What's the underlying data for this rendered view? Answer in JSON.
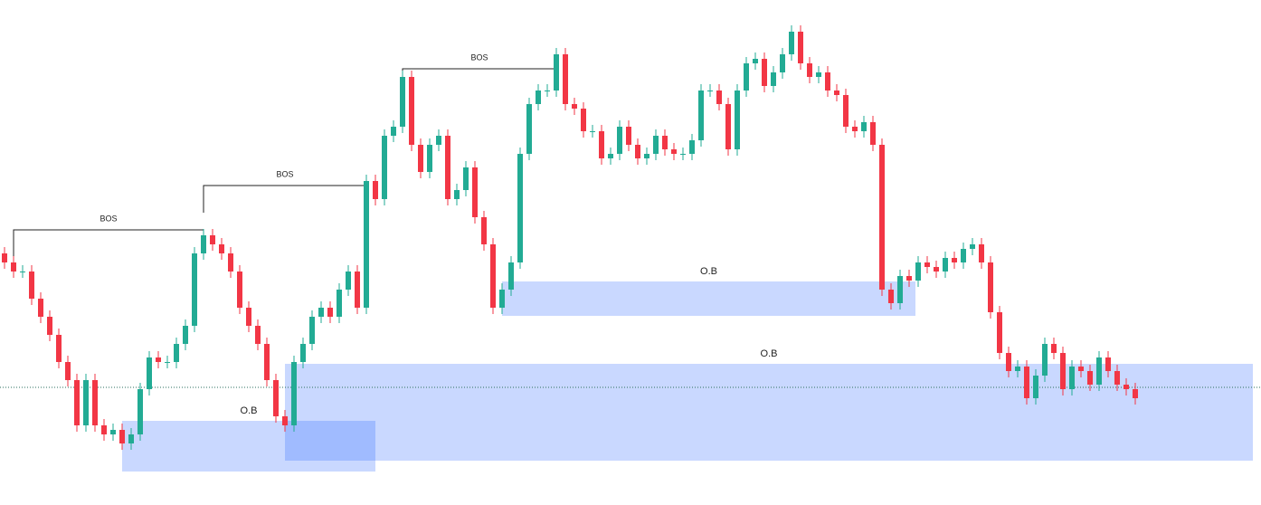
{
  "chart_data": {
    "type": "candlestick",
    "up_color": "#22ab94",
    "down_color": "#f23645",
    "zone_color": "#2962ff",
    "ylim": [
      0,
      558
    ],
    "open": [
      278,
      268,
      258,
      258,
      228,
      208,
      188,
      158,
      138,
      88,
      138,
      88,
      78,
      83,
      68,
      78,
      128,
      163,
      158,
      158,
      178,
      198,
      278,
      298,
      288,
      278,
      258,
      218,
      198,
      178,
      138,
      98,
      88,
      158,
      178,
      208,
      218,
      208,
      238,
      258,
      218,
      358,
      338,
      408,
      418,
      473,
      398,
      368,
      398,
      408,
      338,
      348,
      373,
      318,
      288,
      218,
      238,
      268,
      388,
      443,
      458,
      458,
      498,
      443,
      438,
      413,
      413,
      383,
      388,
      418,
      398,
      383,
      388,
      408,
      393,
      388,
      388,
      403,
      458,
      458,
      443,
      393,
      458,
      488,
      493,
      463,
      478,
      498,
      523,
      488,
      473,
      478,
      458,
      453,
      418,
      413,
      423,
      398,
      238,
      223,
      253,
      248,
      268,
      263,
      258,
      273,
      268,
      283,
      288,
      268,
      213,
      168,
      148,
      153,
      118,
      143,
      178,
      168,
      128,
      153,
      148,
      133,
      163,
      148,
      133,
      128
    ],
    "high": [
      285,
      275,
      265,
      265,
      235,
      215,
      195,
      165,
      145,
      145,
      145,
      95,
      90,
      90,
      85,
      135,
      170,
      170,
      165,
      185,
      205,
      285,
      305,
      305,
      295,
      285,
      265,
      225,
      205,
      185,
      145,
      105,
      165,
      185,
      215,
      225,
      225,
      245,
      265,
      265,
      365,
      365,
      415,
      425,
      480,
      480,
      405,
      405,
      415,
      415,
      355,
      380,
      380,
      325,
      295,
      245,
      275,
      395,
      450,
      465,
      465,
      505,
      505,
      450,
      445,
      420,
      420,
      395,
      425,
      425,
      405,
      395,
      415,
      415,
      400,
      395,
      410,
      465,
      465,
      465,
      450,
      465,
      495,
      500,
      500,
      485,
      505,
      530,
      530,
      495,
      485,
      485,
      465,
      460,
      425,
      430,
      430,
      405,
      245,
      260,
      260,
      275,
      275,
      270,
      280,
      280,
      290,
      295,
      295,
      275,
      220,
      175,
      160,
      160,
      150,
      185,
      185,
      175,
      160,
      160,
      155,
      170,
      170,
      155,
      140,
      135
    ],
    "low": [
      261,
      251,
      251,
      221,
      201,
      181,
      151,
      131,
      81,
      81,
      81,
      71,
      71,
      61,
      61,
      71,
      121,
      151,
      151,
      151,
      171,
      191,
      271,
      281,
      271,
      251,
      211,
      191,
      171,
      131,
      91,
      81,
      81,
      151,
      171,
      201,
      201,
      201,
      231,
      211,
      211,
      331,
      331,
      401,
      411,
      391,
      361,
      361,
      391,
      331,
      331,
      341,
      311,
      281,
      211,
      211,
      231,
      261,
      381,
      436,
      451,
      451,
      436,
      431,
      406,
      406,
      376,
      376,
      381,
      391,
      376,
      376,
      381,
      386,
      381,
      381,
      381,
      396,
      451,
      436,
      386,
      386,
      451,
      481,
      456,
      456,
      471,
      491,
      481,
      466,
      466,
      451,
      446,
      411,
      406,
      406,
      391,
      231,
      216,
      216,
      241,
      241,
      256,
      251,
      251,
      261,
      261,
      276,
      261,
      206,
      161,
      141,
      141,
      111,
      111,
      136,
      161,
      121,
      121,
      141,
      126,
      126,
      141,
      126,
      121,
      111
    ],
    "close": [
      268,
      258,
      258,
      228,
      208,
      188,
      158,
      138,
      88,
      138,
      88,
      78,
      83,
      68,
      78,
      128,
      163,
      158,
      158,
      178,
      198,
      278,
      298,
      288,
      278,
      258,
      218,
      198,
      178,
      138,
      98,
      88,
      158,
      178,
      208,
      218,
      208,
      238,
      258,
      218,
      358,
      338,
      408,
      418,
      473,
      398,
      368,
      398,
      408,
      338,
      348,
      373,
      318,
      288,
      218,
      238,
      268,
      388,
      443,
      458,
      458,
      498,
      443,
      438,
      413,
      413,
      383,
      388,
      418,
      398,
      383,
      388,
      408,
      393,
      388,
      388,
      403,
      458,
      458,
      443,
      393,
      458,
      488,
      493,
      463,
      478,
      498,
      523,
      488,
      473,
      478,
      458,
      453,
      418,
      413,
      423,
      398,
      238,
      223,
      253,
      248,
      268,
      263,
      258,
      273,
      268,
      283,
      288,
      268,
      213,
      168,
      148,
      153,
      118,
      143,
      178,
      168,
      128,
      153,
      148,
      133,
      163,
      148,
      133,
      128,
      118
    ],
    "bos": [
      {
        "label": "BOS",
        "level": 304,
        "from": 1,
        "to": 22
      },
      {
        "label": "BOS",
        "level": 353,
        "from": 22,
        "to": 40
      },
      {
        "label": "BOS",
        "level": 482,
        "from": 44,
        "to": 61
      }
    ],
    "zones": [
      {
        "label": "O.B",
        "top": 93,
        "bottom": 37,
        "from": 13,
        "to": 41
      },
      {
        "label": "O.B",
        "top": 247,
        "bottom": 209,
        "from": 55,
        "to": 100.7
      },
      {
        "label": "O.B",
        "top": 156,
        "bottom": 49,
        "from": 31,
        "to": 138
      }
    ],
    "price_line": 130
  }
}
